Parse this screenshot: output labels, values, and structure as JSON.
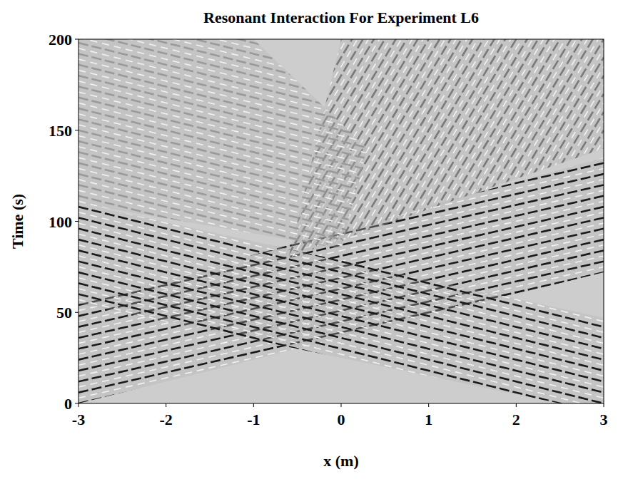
{
  "chart_data": {
    "type": "space_time",
    "title": "Resonant Interaction For Experiment L6",
    "x_label": "x (m)",
    "y_label": "Time (s)",
    "xlim": [
      -3,
      3
    ],
    "ylim": [
      0,
      200
    ],
    "xticks": [
      -3,
      -2,
      -1,
      0,
      1,
      2,
      3
    ],
    "yticks": [
      0,
      50,
      100,
      150,
      200
    ],
    "regions": [
      {
        "x": [
          -3,
          -0.5,
          3,
          3,
          -3
        ],
        "y": [
          0,
          30,
          72,
          135,
          55
        ],
        "color": "#1a1a1a",
        "crest_slope": 11,
        "crest_spacing": 6
      },
      {
        "x": [
          2.5,
          3,
          3,
          -3,
          -3
        ],
        "y": [
          0,
          0,
          47,
          110,
          55
        ],
        "color": "#1a1a1a",
        "crest_slope": -12,
        "crest_spacing": 6
      },
      {
        "x": [
          -0.6,
          3,
          3,
          0
        ],
        "y": [
          80,
          140,
          200,
          200
        ],
        "color": "#7a7a7a",
        "crest_slope": 80,
        "crest_spacing": 10
      },
      {
        "x": [
          -3,
          0,
          0.3,
          -1,
          -3
        ],
        "y": [
          110,
          85,
          140,
          200,
          200
        ],
        "color": "#9a9a9a",
        "crest_slope": -12,
        "crest_spacing": 6
      }
    ]
  }
}
